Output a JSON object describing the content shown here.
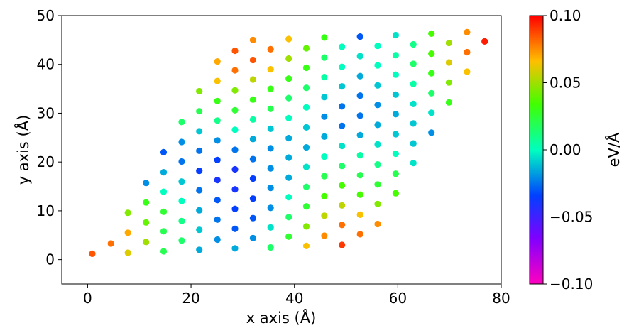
{
  "chart_data": {
    "type": "scatter",
    "xlabel": "x axis (Å)",
    "ylabel": "y axis (Å)",
    "xlim": [
      -5,
      80
    ],
    "ylim": [
      -5,
      50
    ],
    "xticks": [
      "0",
      "20",
      "40",
      "60",
      "80"
    ],
    "yticks": [
      "0",
      "10",
      "20",
      "30",
      "40",
      "50"
    ],
    "grid": false,
    "colorbar": {
      "label": "eV/Å",
      "range": [
        -0.1,
        0.1
      ],
      "colormap": "gist_rainbow_r",
      "ticks": [
        "0.10",
        "0.05",
        "0.00",
        "−0.05",
        "−0.10"
      ]
    },
    "points": [
      {
        "x": 0.9,
        "y": 1.2,
        "c": 0.085
      },
      {
        "x": 4.5,
        "y": 3.3,
        "c": 0.08
      },
      {
        "x": 7.8,
        "y": 1.4,
        "c": 0.06
      },
      {
        "x": 7.8,
        "y": 5.5,
        "c": 0.07
      },
      {
        "x": 7.8,
        "y": 9.6,
        "c": 0.045
      },
      {
        "x": 11.3,
        "y": 3.6,
        "c": 0.05
      },
      {
        "x": 11.3,
        "y": 7.6,
        "c": 0.04
      },
      {
        "x": 11.3,
        "y": 11.7,
        "c": 0.03
      },
      {
        "x": 11.3,
        "y": 15.7,
        "c": -0.02
      },
      {
        "x": 14.7,
        "y": 1.7,
        "c": 0.02
      },
      {
        "x": 14.7,
        "y": 5.8,
        "c": 0.02
      },
      {
        "x": 14.7,
        "y": 9.8,
        "c": 0.025
      },
      {
        "x": 14.7,
        "y": 13.9,
        "c": 0.0
      },
      {
        "x": 14.7,
        "y": 17.9,
        "c": -0.015
      },
      {
        "x": 14.7,
        "y": 22.0,
        "c": -0.03
      },
      {
        "x": 18.2,
        "y": 3.9,
        "c": 0.015
      },
      {
        "x": 18.2,
        "y": 7.9,
        "c": 0.01
      },
      {
        "x": 18.2,
        "y": 12.0,
        "c": 0.0
      },
      {
        "x": 18.2,
        "y": 16.0,
        "c": -0.01
      },
      {
        "x": 18.2,
        "y": 20.1,
        "c": -0.025
      },
      {
        "x": 18.2,
        "y": 24.1,
        "c": -0.02
      },
      {
        "x": 18.2,
        "y": 28.2,
        "c": 0.015
      },
      {
        "x": 21.6,
        "y": 2.0,
        "c": -0.015
      },
      {
        "x": 21.6,
        "y": 6.1,
        "c": -0.01
      },
      {
        "x": 21.6,
        "y": 10.1,
        "c": -0.015
      },
      {
        "x": 21.6,
        "y": 14.2,
        "c": -0.025
      },
      {
        "x": 21.6,
        "y": 18.2,
        "c": -0.035
      },
      {
        "x": 21.6,
        "y": 22.3,
        "c": -0.025
      },
      {
        "x": 21.6,
        "y": 26.3,
        "c": -0.01
      },
      {
        "x": 21.6,
        "y": 30.4,
        "c": 0.02
      },
      {
        "x": 21.6,
        "y": 34.5,
        "c": 0.045
      },
      {
        "x": 25.1,
        "y": 4.1,
        "c": -0.02
      },
      {
        "x": 25.1,
        "y": 8.2,
        "c": -0.025
      },
      {
        "x": 25.1,
        "y": 12.2,
        "c": -0.03
      },
      {
        "x": 25.1,
        "y": 16.3,
        "c": -0.04
      },
      {
        "x": 25.1,
        "y": 20.4,
        "c": -0.035
      },
      {
        "x": 25.1,
        "y": 24.4,
        "c": -0.02
      },
      {
        "x": 25.1,
        "y": 28.5,
        "c": 0.01
      },
      {
        "x": 25.1,
        "y": 32.5,
        "c": 0.03
      },
      {
        "x": 25.1,
        "y": 36.6,
        "c": 0.065
      },
      {
        "x": 25.1,
        "y": 40.6,
        "c": 0.07
      },
      {
        "x": 28.5,
        "y": 2.3,
        "c": -0.015
      },
      {
        "x": 28.5,
        "y": 6.3,
        "c": -0.03
      },
      {
        "x": 28.5,
        "y": 10.4,
        "c": -0.035
      },
      {
        "x": 28.5,
        "y": 14.4,
        "c": -0.04
      },
      {
        "x": 28.5,
        "y": 18.5,
        "c": -0.04
      },
      {
        "x": 28.5,
        "y": 22.5,
        "c": -0.025
      },
      {
        "x": 28.5,
        "y": 26.6,
        "c": 0.0
      },
      {
        "x": 28.5,
        "y": 30.6,
        "c": 0.025
      },
      {
        "x": 28.5,
        "y": 34.7,
        "c": 0.045
      },
      {
        "x": 28.5,
        "y": 38.8,
        "c": 0.08
      },
      {
        "x": 28.5,
        "y": 42.8,
        "c": 0.085
      },
      {
        "x": 32.0,
        "y": 4.4,
        "c": -0.02
      },
      {
        "x": 32.0,
        "y": 8.5,
        "c": -0.03
      },
      {
        "x": 32.0,
        "y": 12.5,
        "c": -0.035
      },
      {
        "x": 32.0,
        "y": 16.6,
        "c": -0.035
      },
      {
        "x": 32.0,
        "y": 20.6,
        "c": -0.025
      },
      {
        "x": 32.0,
        "y": 24.7,
        "c": -0.015
      },
      {
        "x": 32.0,
        "y": 28.7,
        "c": 0.005
      },
      {
        "x": 32.0,
        "y": 32.8,
        "c": 0.03
      },
      {
        "x": 32.0,
        "y": 36.9,
        "c": 0.055
      },
      {
        "x": 32.0,
        "y": 40.9,
        "c": 0.085
      },
      {
        "x": 32.0,
        "y": 45.0,
        "c": 0.075
      },
      {
        "x": 35.4,
        "y": 2.5,
        "c": 0.015
      },
      {
        "x": 35.4,
        "y": 6.6,
        "c": -0.005
      },
      {
        "x": 35.4,
        "y": 10.6,
        "c": -0.02
      },
      {
        "x": 35.4,
        "y": 14.7,
        "c": -0.02
      },
      {
        "x": 35.4,
        "y": 18.7,
        "c": -0.02
      },
      {
        "x": 35.4,
        "y": 22.8,
        "c": -0.02
      },
      {
        "x": 35.4,
        "y": 26.8,
        "c": -0.01
      },
      {
        "x": 35.4,
        "y": 30.9,
        "c": 0.02
      },
      {
        "x": 35.4,
        "y": 35.0,
        "c": 0.03
      },
      {
        "x": 35.4,
        "y": 39.0,
        "c": 0.065
      },
      {
        "x": 35.4,
        "y": 43.1,
        "c": 0.08
      },
      {
        "x": 38.9,
        "y": 4.7,
        "c": 0.025
      },
      {
        "x": 38.9,
        "y": 8.7,
        "c": 0.015
      },
      {
        "x": 38.9,
        "y": 12.8,
        "c": 0.0
      },
      {
        "x": 38.9,
        "y": 16.8,
        "c": -0.015
      },
      {
        "x": 38.9,
        "y": 20.9,
        "c": -0.015
      },
      {
        "x": 38.9,
        "y": 24.9,
        "c": -0.015
      },
      {
        "x": 38.9,
        "y": 29.0,
        "c": 0.0
      },
      {
        "x": 38.9,
        "y": 33.1,
        "c": 0.015
      },
      {
        "x": 38.9,
        "y": 37.1,
        "c": 0.03
      },
      {
        "x": 38.9,
        "y": 41.2,
        "c": 0.05
      },
      {
        "x": 38.9,
        "y": 45.2,
        "c": 0.065
      },
      {
        "x": 42.3,
        "y": 2.8,
        "c": 0.065
      },
      {
        "x": 42.3,
        "y": 6.8,
        "c": 0.045
      },
      {
        "x": 42.3,
        "y": 10.9,
        "c": 0.025
      },
      {
        "x": 42.3,
        "y": 14.9,
        "c": 0.015
      },
      {
        "x": 42.3,
        "y": 19.0,
        "c": -0.005
      },
      {
        "x": 42.3,
        "y": 23.0,
        "c": -0.015
      },
      {
        "x": 42.3,
        "y": 27.1,
        "c": -0.01
      },
      {
        "x": 42.3,
        "y": 31.2,
        "c": 0.0
      },
      {
        "x": 42.3,
        "y": 35.2,
        "c": 0.015
      },
      {
        "x": 42.3,
        "y": 39.3,
        "c": 0.03
      },
      {
        "x": 42.3,
        "y": 43.3,
        "c": 0.04
      },
      {
        "x": 45.8,
        "y": 4.9,
        "c": 0.075
      },
      {
        "x": 45.8,
        "y": 9.0,
        "c": 0.055
      },
      {
        "x": 45.8,
        "y": 13.0,
        "c": 0.035
      },
      {
        "x": 45.8,
        "y": 17.1,
        "c": 0.02
      },
      {
        "x": 45.8,
        "y": 21.1,
        "c": 0.0
      },
      {
        "x": 45.8,
        "y": 25.2,
        "c": -0.015
      },
      {
        "x": 45.8,
        "y": 29.3,
        "c": -0.02
      },
      {
        "x": 45.8,
        "y": 33.3,
        "c": -0.01
      },
      {
        "x": 45.8,
        "y": 37.4,
        "c": 0.005
      },
      {
        "x": 45.8,
        "y": 41.4,
        "c": 0.015
      },
      {
        "x": 45.8,
        "y": 45.5,
        "c": 0.03
      },
      {
        "x": 49.2,
        "y": 3.0,
        "c": 0.09
      },
      {
        "x": 49.2,
        "y": 7.1,
        "c": 0.08
      },
      {
        "x": 49.2,
        "y": 11.1,
        "c": 0.055
      },
      {
        "x": 49.2,
        "y": 15.2,
        "c": 0.035
      },
      {
        "x": 49.2,
        "y": 19.2,
        "c": 0.015
      },
      {
        "x": 49.2,
        "y": 23.3,
        "c": -0.005
      },
      {
        "x": 49.2,
        "y": 27.4,
        "c": -0.025
      },
      {
        "x": 49.2,
        "y": 31.4,
        "c": -0.025
      },
      {
        "x": 49.2,
        "y": 35.5,
        "c": -0.01
      },
      {
        "x": 49.2,
        "y": 39.5,
        "c": 0.0
      },
      {
        "x": 49.2,
        "y": 43.6,
        "c": 0.0
      },
      {
        "x": 52.7,
        "y": 5.2,
        "c": 0.08
      },
      {
        "x": 52.7,
        "y": 9.2,
        "c": 0.065
      },
      {
        "x": 52.7,
        "y": 13.3,
        "c": 0.035
      },
      {
        "x": 52.7,
        "y": 17.3,
        "c": 0.02
      },
      {
        "x": 52.7,
        "y": 21.4,
        "c": 0.005
      },
      {
        "x": 52.7,
        "y": 25.5,
        "c": -0.015
      },
      {
        "x": 52.7,
        "y": 29.5,
        "c": -0.025
      },
      {
        "x": 52.7,
        "y": 33.6,
        "c": -0.025
      },
      {
        "x": 52.7,
        "y": 37.6,
        "c": -0.015
      },
      {
        "x": 52.7,
        "y": 41.7,
        "c": -0.005
      },
      {
        "x": 52.7,
        "y": 45.7,
        "c": -0.03
      },
      {
        "x": 56.1,
        "y": 7.3,
        "c": 0.075
      },
      {
        "x": 56.1,
        "y": 11.4,
        "c": 0.045
      },
      {
        "x": 56.1,
        "y": 15.4,
        "c": 0.025
      },
      {
        "x": 56.1,
        "y": 19.5,
        "c": 0.01
      },
      {
        "x": 56.1,
        "y": 23.6,
        "c": -0.005
      },
      {
        "x": 56.1,
        "y": 27.6,
        "c": -0.015
      },
      {
        "x": 56.1,
        "y": 31.7,
        "c": -0.02
      },
      {
        "x": 56.1,
        "y": 35.7,
        "c": -0.01
      },
      {
        "x": 56.1,
        "y": 39.8,
        "c": 0.0
      },
      {
        "x": 56.1,
        "y": 43.8,
        "c": 0.0
      },
      {
        "x": 59.6,
        "y": 13.6,
        "c": 0.035
      },
      {
        "x": 59.6,
        "y": 17.6,
        "c": 0.02
      },
      {
        "x": 59.6,
        "y": 21.7,
        "c": 0.0
      },
      {
        "x": 59.6,
        "y": 25.7,
        "c": -0.01
      },
      {
        "x": 59.6,
        "y": 29.8,
        "c": -0.015
      },
      {
        "x": 59.6,
        "y": 33.8,
        "c": -0.01
      },
      {
        "x": 59.6,
        "y": 37.9,
        "c": 0.0
      },
      {
        "x": 59.6,
        "y": 41.9,
        "c": 0.005
      },
      {
        "x": 59.6,
        "y": 46.0,
        "c": -0.005
      },
      {
        "x": 63.0,
        "y": 19.8,
        "c": -0.005
      },
      {
        "x": 63.0,
        "y": 23.8,
        "c": -0.01
      },
      {
        "x": 63.0,
        "y": 27.9,
        "c": -0.01
      },
      {
        "x": 63.0,
        "y": 31.9,
        "c": -0.005
      },
      {
        "x": 63.0,
        "y": 36.0,
        "c": 0.005
      },
      {
        "x": 63.0,
        "y": 40.1,
        "c": 0.015
      },
      {
        "x": 63.0,
        "y": 44.1,
        "c": 0.01
      },
      {
        "x": 66.5,
        "y": 26.0,
        "c": -0.02
      },
      {
        "x": 66.5,
        "y": 30.1,
        "c": -0.005
      },
      {
        "x": 66.5,
        "y": 34.1,
        "c": 0.015
      },
      {
        "x": 66.5,
        "y": 38.2,
        "c": 0.03
      },
      {
        "x": 66.5,
        "y": 42.2,
        "c": 0.035
      },
      {
        "x": 66.5,
        "y": 46.3,
        "c": 0.035
      },
      {
        "x": 69.9,
        "y": 32.2,
        "c": 0.03
      },
      {
        "x": 69.9,
        "y": 36.3,
        "c": 0.045
      },
      {
        "x": 69.9,
        "y": 40.4,
        "c": 0.06
      },
      {
        "x": 69.9,
        "y": 44.4,
        "c": 0.05
      },
      {
        "x": 73.4,
        "y": 38.5,
        "c": 0.065
      },
      {
        "x": 73.4,
        "y": 42.5,
        "c": 0.08
      },
      {
        "x": 73.4,
        "y": 46.6,
        "c": 0.075
      },
      {
        "x": 76.8,
        "y": 44.7,
        "c": 0.095
      }
    ]
  }
}
